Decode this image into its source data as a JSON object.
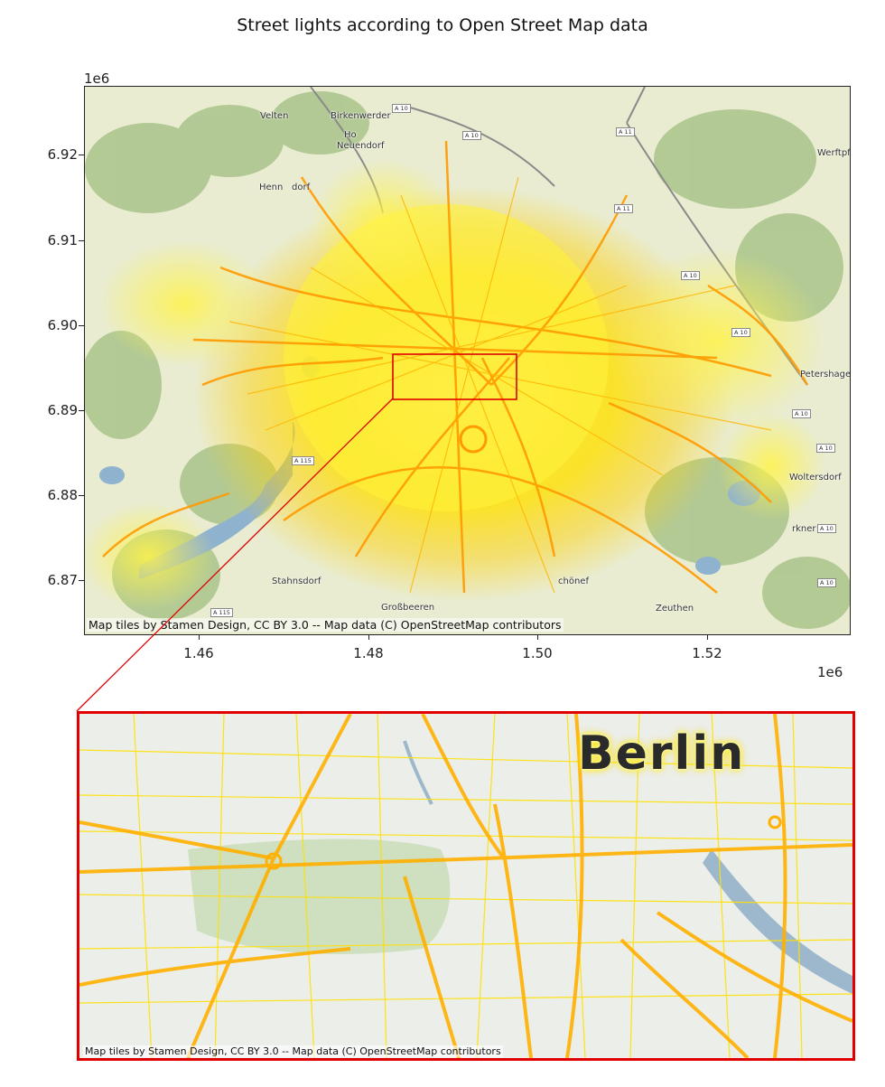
{
  "title": "Street lights according to Open Street Map data",
  "axes": {
    "y_exponent": "1e6",
    "x_exponent": "1e6",
    "y_ticks": [
      "6.92",
      "6.91",
      "6.90",
      "6.89",
      "6.88",
      "6.87"
    ],
    "x_ticks": [
      "1.46",
      "1.48",
      "1.50",
      "1.52"
    ]
  },
  "attribution": "Map tiles by Stamen Design, CC BY 3.0 -- Map data (C) OpenStreetMap contributors",
  "inset_attribution": "Map tiles by Stamen Design, CC BY 3.0 -- Map data (C) OpenStreetMap contributors",
  "inset_label": "Berlin",
  "place_names": {
    "velten": "Velten",
    "birkenwerder": "Birkenwerder",
    "hohen_neuendorf_a": "Ho",
    "hohen_neuendorf_b": "Neuendorf",
    "hennigsdorf": "Henn",
    "hennigsdorf_end": "dorf",
    "werneuchen": "Werftpf",
    "petershagen": "Petershage",
    "woltersdorf": "Woltersdorf",
    "erkner": "rkner",
    "stahnsdorf": "Stahnsdorf",
    "grossbeeren": "Großbeeren",
    "schoenefeld": "chönef",
    "zeuthen": "Zeuthen"
  },
  "road_shields": [
    "A 10",
    "A 10",
    "A 11",
    "A 11",
    "A 10",
    "A 10",
    "A 115",
    "A 115",
    "A 10",
    "A 10",
    "A 10",
    "A 10",
    "A 10"
  ],
  "colors": {
    "lights_core": "#ffe600",
    "lights_edge": "#ff9a00",
    "highlight": "#e00000"
  }
}
